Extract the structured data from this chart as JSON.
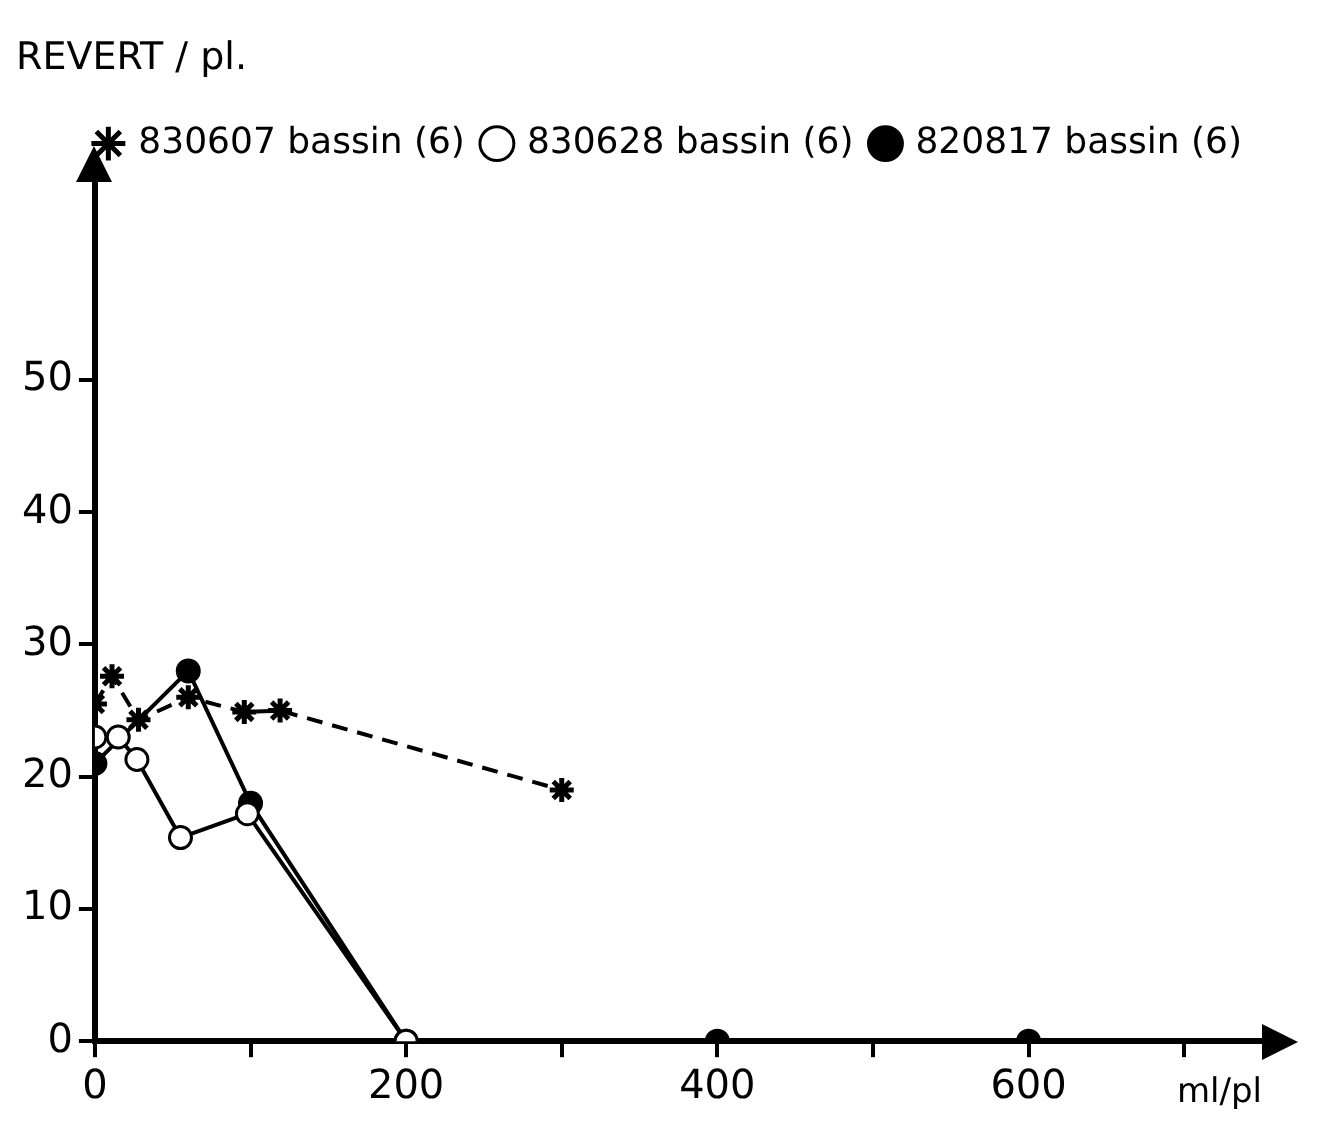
{
  "chart_data": {
    "type": "line",
    "ylabel": "REVERT / pl.",
    "xlabel": "ml/pl",
    "xlim": [
      0,
      750
    ],
    "ylim": [
      0,
      65
    ],
    "xticks": [
      0,
      {
        "value": 100,
        "label": null
      },
      200,
      {
        "value": 300,
        "label": null
      },
      400,
      {
        "value": 500,
        "label": null
      },
      600,
      {
        "value": 700,
        "label": null
      }
    ],
    "yticks": [
      0,
      10,
      20,
      30,
      40,
      50
    ],
    "grid": false,
    "legend": "top right",
    "series": [
      {
        "name": "830607 bassin (6)",
        "color": "#000000",
        "marker": "cross",
        "line_style": "dashed",
        "x": [
          0,
          11,
          28,
          60,
          96,
          119,
          300
        ],
        "values": [
          25.5,
          27.6,
          24.3,
          26,
          24.9,
          25,
          19
        ]
      },
      {
        "name": "830628 bassin (6)",
        "color": "#000000",
        "marker": "circle",
        "line_style": "solid",
        "x": [
          0,
          15,
          27,
          55,
          98,
          200
        ],
        "values": [
          23,
          23,
          21.3,
          15.4,
          17.2,
          0
        ]
      },
      {
        "name": "820817 bassin (6)",
        "color": "#000000",
        "marker": "circle",
        "line_style": "solid",
        "x": [
          0,
          60,
          100,
          200,
          400,
          600
        ],
        "values": [
          21,
          28,
          18,
          0,
          0,
          0
        ]
      }
    ]
  }
}
